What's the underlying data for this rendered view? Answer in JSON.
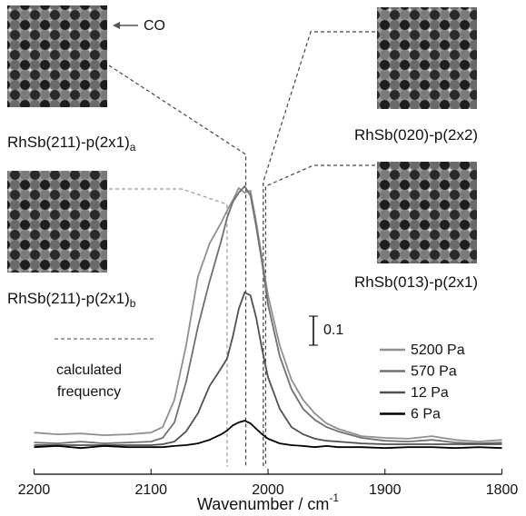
{
  "chart_data": {
    "type": "line",
    "x": [
      2200,
      2180,
      2160,
      2140,
      2120,
      2100,
      2090,
      2080,
      2070,
      2060,
      2050,
      2040,
      2035,
      2030,
      2025,
      2020,
      2015,
      2010,
      2005,
      2000,
      1990,
      1980,
      1970,
      1960,
      1950,
      1940,
      1920,
      1900,
      1880,
      1860,
      1840,
      1820,
      1800
    ],
    "series": [
      {
        "name": "5200 Pa",
        "color": "#909090",
        "values": [
          0.059,
          0.053,
          0.056,
          0.05,
          0.053,
          0.059,
          0.078,
          0.172,
          0.359,
          0.594,
          0.709,
          0.781,
          0.822,
          0.859,
          0.9,
          0.884,
          0.891,
          0.781,
          0.656,
          0.531,
          0.359,
          0.241,
          0.172,
          0.125,
          0.091,
          0.072,
          0.047,
          0.041,
          0.038,
          0.047,
          0.034,
          0.028,
          0.034
        ]
      },
      {
        "name": "570 Pa",
        "color": "#707070",
        "values": [
          0.025,
          0.022,
          0.028,
          0.022,
          0.025,
          0.028,
          0.041,
          0.094,
          0.234,
          0.422,
          0.578,
          0.719,
          0.797,
          0.853,
          0.884,
          0.906,
          0.875,
          0.766,
          0.641,
          0.5,
          0.322,
          0.209,
          0.141,
          0.103,
          0.078,
          0.063,
          0.041,
          0.031,
          0.028,
          0.034,
          0.025,
          0.022,
          0.025
        ]
      },
      {
        "name": "12 Pa",
        "color": "#505050",
        "values": [
          0.016,
          0.016,
          0.016,
          0.016,
          0.016,
          0.016,
          0.019,
          0.028,
          0.063,
          0.125,
          0.219,
          0.281,
          0.313,
          0.391,
          0.484,
          0.541,
          0.531,
          0.453,
          0.344,
          0.25,
          0.141,
          0.078,
          0.053,
          0.038,
          0.031,
          0.028,
          0.022,
          0.019,
          0.019,
          0.019,
          0.019,
          0.019,
          0.019
        ]
      },
      {
        "name": "6 Pa",
        "color": "#000000",
        "values": [
          0.009,
          0.013,
          0.006,
          0.013,
          0.009,
          0.009,
          0.009,
          0.013,
          0.016,
          0.022,
          0.034,
          0.053,
          0.066,
          0.084,
          0.094,
          0.1,
          0.091,
          0.072,
          0.053,
          0.038,
          0.022,
          0.016,
          0.013,
          0.009,
          0.013,
          0.009,
          0.009,
          0.006,
          0.009,
          0.009,
          0.006,
          0.009,
          0.006
        ]
      }
    ],
    "xlim": [
      2200,
      1800
    ],
    "xticks": [
      2200,
      2100,
      2000,
      1900,
      1800
    ],
    "xlabel": "Wavenumber / cm",
    "xlabel_superscript": "-1",
    "ylim": [
      -0.084,
      1.0
    ],
    "scale_bar": 0.1,
    "co_label": "CO",
    "calc_legend": [
      "calculated",
      "frequency"
    ],
    "structures": [
      {
        "label": "RhSb(211)-p(2x1)",
        "subscript": "a",
        "frequency": 2019
      },
      {
        "label": "RhSb(020)-p(2x2)",
        "frequency": 2004
      },
      {
        "label": "RhSb(211)-p(2x1)",
        "subscript": "b",
        "frequency": 2035
      },
      {
        "label": "RhSb(013)-p(2x1)",
        "frequency": 2002
      }
    ]
  }
}
